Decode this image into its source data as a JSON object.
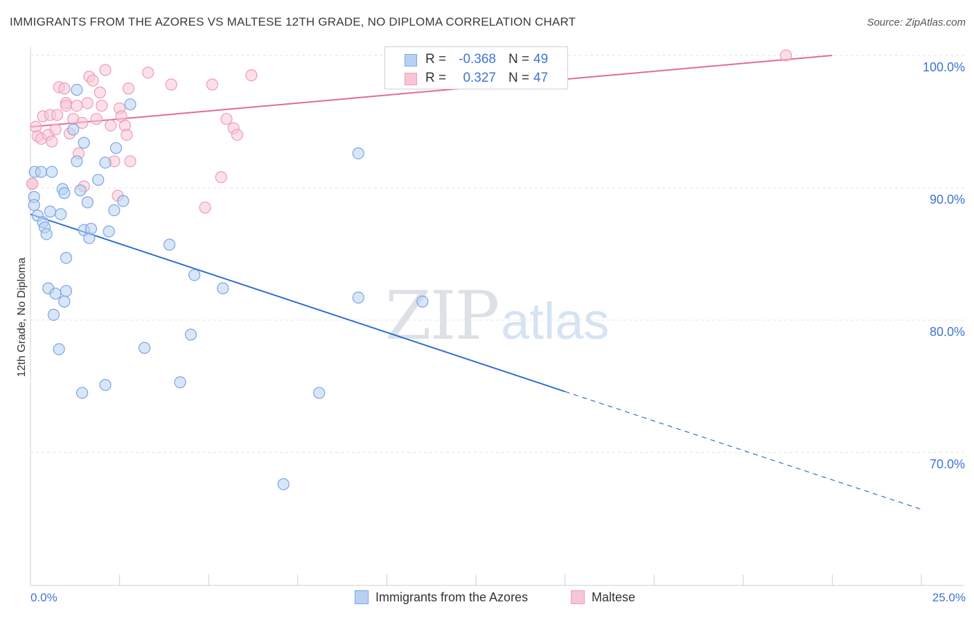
{
  "header": {
    "title": "IMMIGRANTS FROM THE AZORES VS MALTESE 12TH GRADE, NO DIPLOMA CORRELATION CHART",
    "source": "Source: ZipAtlas.com"
  },
  "watermark": {
    "zip": "ZIP",
    "atlas": "atlas"
  },
  "legend": {
    "rows": [
      {
        "r_label": "R =",
        "r_value": "-0.368",
        "n_label": "N =",
        "n_value": "49"
      },
      {
        "r_label": "R =",
        "r_value": "0.327",
        "n_label": "N =",
        "n_value": "47"
      }
    ]
  },
  "bottom_legend": {
    "azores": "Immigrants from the Azores",
    "maltese": "Maltese"
  },
  "colors": {
    "blue_fill": "#b8d1f3",
    "blue_stroke": "#7aa5e0",
    "blue_line": "#2e6fd0",
    "pink_fill": "#f7c6d6",
    "pink_stroke": "#ef9ab6",
    "pink_line": "#e46b92",
    "grid": "#e3e3e3",
    "axis_text": "#3d74d6"
  },
  "chart_data": {
    "type": "scatter",
    "title": "IMMIGRANTS FROM THE AZORES VS MALTESE 12TH GRADE, NO DIPLOMA CORRELATION CHART",
    "xlabel": "",
    "ylabel": "12th Grade, No Diploma",
    "xlim": [
      0,
      25
    ],
    "ylim": [
      60,
      101.5
    ],
    "x_tick_labels": [
      "0.0%",
      "25.0%"
    ],
    "y_ticks": [
      70,
      80,
      90,
      100
    ],
    "y_tick_labels": [
      "70.0%",
      "80.0%",
      "90.0%",
      "100.0%"
    ],
    "series": [
      {
        "name": "Immigrants from the Azores",
        "R": -0.368,
        "N": 49,
        "points": [
          [
            0.12,
            91.2
          ],
          [
            0.3,
            91.2
          ],
          [
            0.6,
            91.2
          ],
          [
            0.1,
            89.3
          ],
          [
            0.1,
            88.7
          ],
          [
            0.2,
            87.9
          ],
          [
            0.35,
            87.4
          ],
          [
            0.4,
            87.0
          ],
          [
            0.45,
            86.5
          ],
          [
            0.55,
            88.2
          ],
          [
            0.85,
            88.0
          ],
          [
            0.9,
            89.9
          ],
          [
            0.95,
            89.6
          ],
          [
            1.3,
            97.4
          ],
          [
            1.2,
            94.4
          ],
          [
            1.5,
            93.4
          ],
          [
            1.3,
            92.0
          ],
          [
            1.4,
            89.8
          ],
          [
            1.6,
            88.9
          ],
          [
            1.5,
            86.8
          ],
          [
            1.65,
            86.2
          ],
          [
            1.7,
            86.9
          ],
          [
            1.0,
            84.7
          ],
          [
            0.5,
            82.4
          ],
          [
            0.7,
            82.0
          ],
          [
            1.0,
            82.2
          ],
          [
            0.95,
            81.4
          ],
          [
            0.65,
            80.4
          ],
          [
            0.8,
            77.8
          ],
          [
            1.45,
            74.5
          ],
          [
            1.9,
            90.6
          ],
          [
            2.1,
            91.9
          ],
          [
            2.4,
            93.0
          ],
          [
            2.35,
            88.3
          ],
          [
            2.6,
            89.0
          ],
          [
            2.2,
            86.7
          ],
          [
            2.8,
            96.3
          ],
          [
            3.2,
            77.9
          ],
          [
            3.9,
            85.7
          ],
          [
            4.5,
            78.9
          ],
          [
            4.2,
            75.3
          ],
          [
            4.6,
            83.4
          ],
          [
            5.4,
            82.4
          ],
          [
            2.1,
            75.1
          ],
          [
            9.2,
            92.6
          ],
          [
            9.2,
            81.7
          ],
          [
            11.0,
            81.4
          ],
          [
            8.1,
            74.5
          ],
          [
            7.1,
            67.6
          ]
        ],
        "trend": {
          "x": [
            0,
            15
          ],
          "y": [
            88.0,
            74.6
          ],
          "dashed_to": [
            25,
            65.7
          ]
        }
      },
      {
        "name": "Maltese",
        "R": 0.327,
        "N": 47,
        "points": [
          [
            0.05,
            90.3
          ],
          [
            0.15,
            94.6
          ],
          [
            0.2,
            93.9
          ],
          [
            0.3,
            93.7
          ],
          [
            0.35,
            95.4
          ],
          [
            0.5,
            94.0
          ],
          [
            0.55,
            95.5
          ],
          [
            0.6,
            93.5
          ],
          [
            0.75,
            95.5
          ],
          [
            0.7,
            94.4
          ],
          [
            0.8,
            97.6
          ],
          [
            0.95,
            97.5
          ],
          [
            1.0,
            96.4
          ],
          [
            1.0,
            96.2
          ],
          [
            1.1,
            94.1
          ],
          [
            1.2,
            95.2
          ],
          [
            1.3,
            96.2
          ],
          [
            1.35,
            92.6
          ],
          [
            1.45,
            94.9
          ],
          [
            1.5,
            90.1
          ],
          [
            1.6,
            96.4
          ],
          [
            1.65,
            98.4
          ],
          [
            1.75,
            98.1
          ],
          [
            1.85,
            95.2
          ],
          [
            1.95,
            97.2
          ],
          [
            2.0,
            96.2
          ],
          [
            2.1,
            98.9
          ],
          [
            2.25,
            94.7
          ],
          [
            2.35,
            92.0
          ],
          [
            2.45,
            89.4
          ],
          [
            2.5,
            96.0
          ],
          [
            2.55,
            95.4
          ],
          [
            2.65,
            94.7
          ],
          [
            2.7,
            94.0
          ],
          [
            2.75,
            97.5
          ],
          [
            2.8,
            92.0
          ],
          [
            3.3,
            98.7
          ],
          [
            3.95,
            97.8
          ],
          [
            4.9,
            88.5
          ],
          [
            5.1,
            97.8
          ],
          [
            5.35,
            90.8
          ],
          [
            5.5,
            95.2
          ],
          [
            5.7,
            94.5
          ],
          [
            5.8,
            94.0
          ],
          [
            6.2,
            98.5
          ],
          [
            21.2,
            100.0
          ],
          [
            0.05,
            90.3
          ]
        ],
        "trend": {
          "x": [
            0,
            22.5
          ],
          "y": [
            94.6,
            100.0
          ]
        }
      }
    ]
  }
}
